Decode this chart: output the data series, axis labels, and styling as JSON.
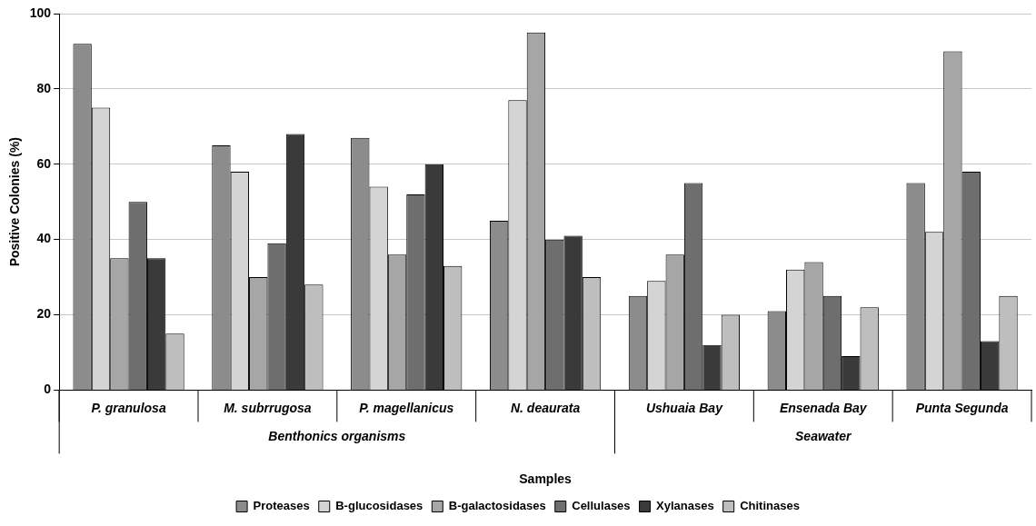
{
  "chart_data": {
    "type": "bar",
    "xlabel": "Samples",
    "ylabel": "Positive Colonies (%)",
    "categories": [
      "P. granulosa",
      "M. subrrugosa",
      "P. magellanicus",
      "N. deaurata",
      "Ushuaia Bay",
      "Ensenada Bay",
      "Punta Segunda"
    ],
    "series": [
      {
        "name": "Proteases",
        "color": "#8c8c8c",
        "values": [
          92,
          65,
          67,
          45,
          25,
          21,
          55
        ]
      },
      {
        "name": "B-glucosidases",
        "color": "#d4d4d4",
        "values": [
          75,
          58,
          54,
          77,
          29,
          32,
          42
        ]
      },
      {
        "name": "B-galactosidases",
        "color": "#a6a6a6",
        "values": [
          35,
          30,
          36,
          95,
          36,
          34,
          90
        ]
      },
      {
        "name": "Cellulases",
        "color": "#6e6e6e",
        "values": [
          50,
          39,
          52,
          40,
          55,
          25,
          58
        ]
      },
      {
        "name": "Xylanases",
        "color": "#3a3a3a",
        "values": [
          35,
          68,
          60,
          41,
          12,
          9,
          13
        ]
      },
      {
        "name": "Chitinases",
        "color": "#bebebe",
        "values": [
          15,
          28,
          33,
          30,
          20,
          22,
          25
        ]
      }
    ],
    "annotations": [
      "Benthonics organisms",
      "Seawater"
    ],
    "ylim": [
      0,
      100
    ],
    "yticks": [
      0,
      20,
      40,
      60,
      80,
      100
    ],
    "grid": "y",
    "legend": "bottom"
  }
}
